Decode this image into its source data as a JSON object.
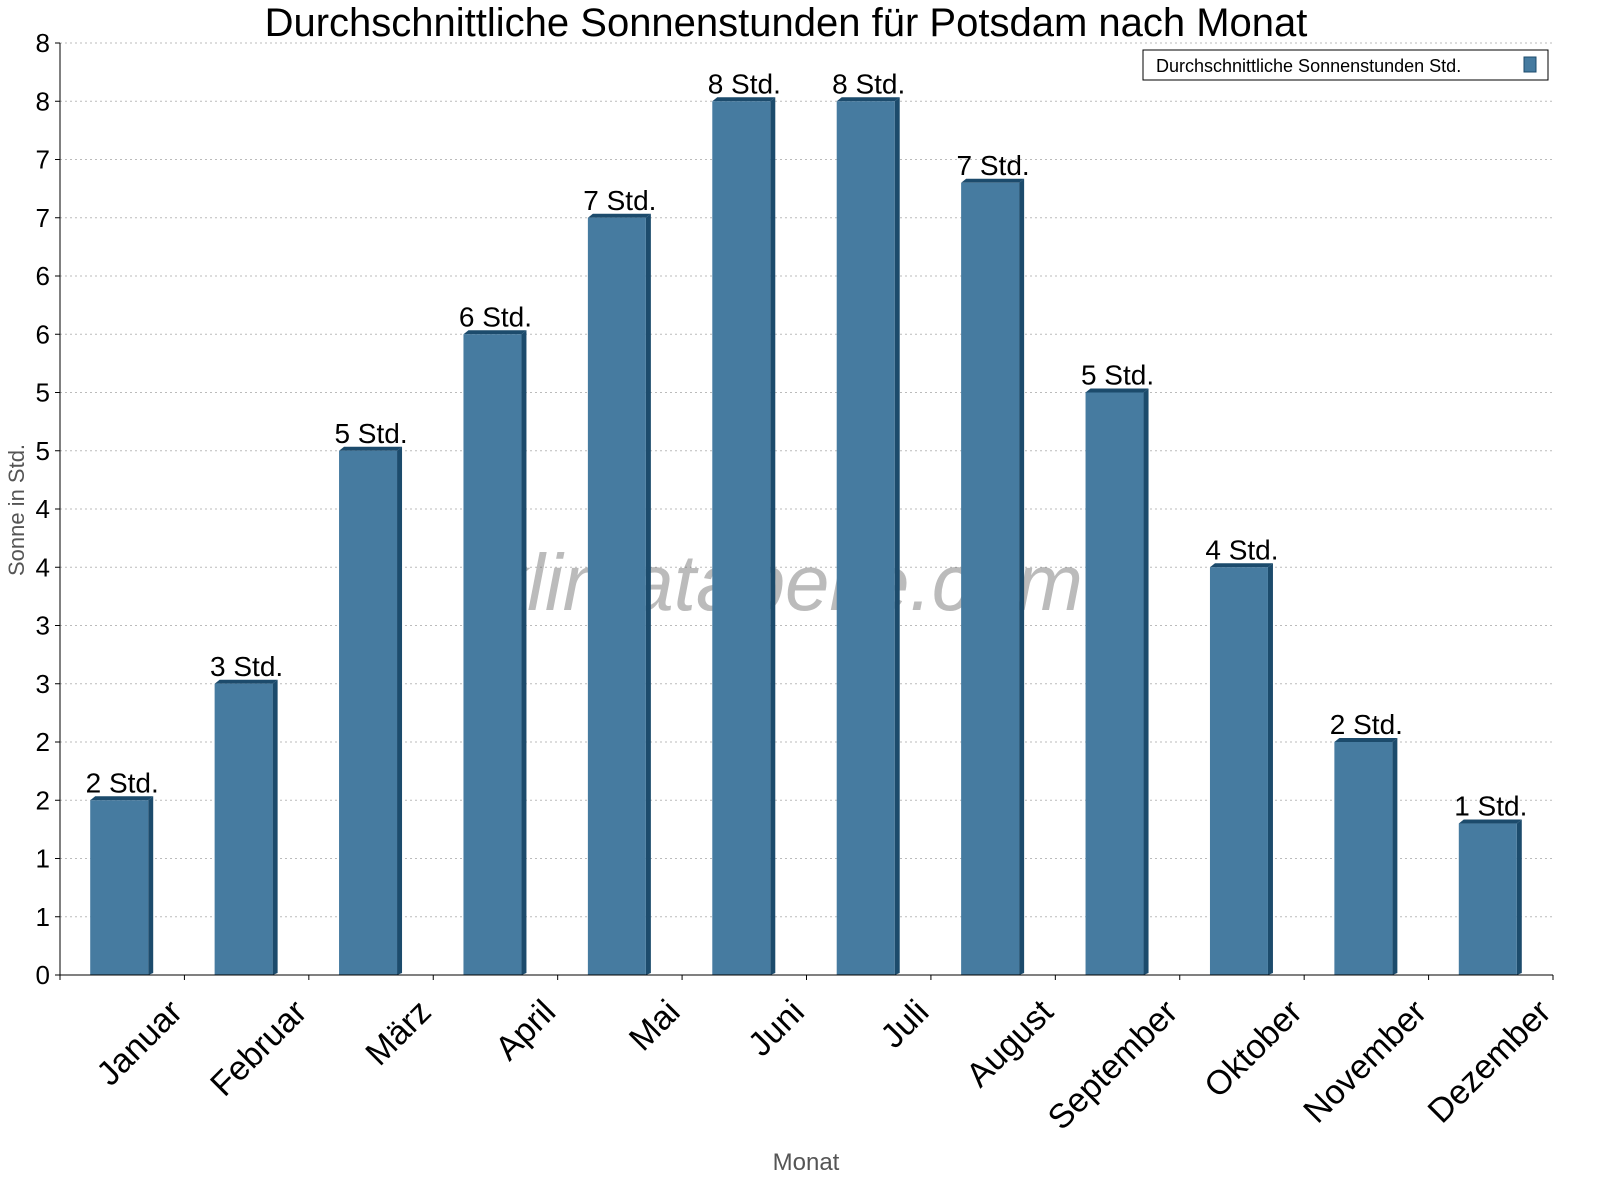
{
  "chart_data": {
    "type": "bar",
    "title": "Durchschnittliche Sonnenstunden für Potsdam nach Monat",
    "xlabel": "Monat",
    "ylabel": "Sonne in Std.",
    "ylim": [
      0,
      8
    ],
    "yticks": [
      0,
      0.5,
      1,
      1.5,
      2,
      2.5,
      3,
      3.5,
      4,
      4.5,
      5,
      5.5,
      6,
      6.5,
      7,
      7.5,
      8
    ],
    "ytick_labels": [
      "0",
      "1",
      "1",
      "2",
      "2",
      "3",
      "3",
      "4",
      "4",
      "5",
      "5",
      "6",
      "6",
      "7",
      "7",
      "8",
      "8"
    ],
    "grid": true,
    "legend_position": "top-right",
    "categories": [
      "Januar",
      "Februar",
      "März",
      "April",
      "Mai",
      "Juni",
      "Juli",
      "August",
      "September",
      "Oktober",
      "November",
      "Dezember"
    ],
    "series": [
      {
        "name": "Durchschnittliche Sonnenstunden Std.",
        "color": "#467ba0",
        "values": [
          1.5,
          2.5,
          4.5,
          5.5,
          6.5,
          7.5,
          7.5,
          6.8,
          5.0,
          3.5,
          2.0,
          1.3
        ],
        "data_labels": [
          "2 Std.",
          "3 Std.",
          "5 Std.",
          "6 Std.",
          "7 Std.",
          "8 Std.",
          "8 Std.",
          "7 Std.",
          "5 Std.",
          "4 Std.",
          "2 Std.",
          "1 Std."
        ]
      }
    ],
    "watermark": "klimatabelle.com"
  }
}
